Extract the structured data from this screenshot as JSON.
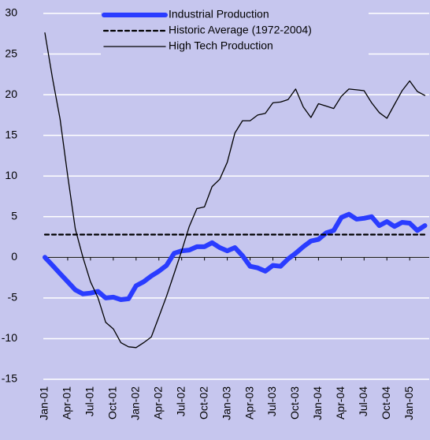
{
  "chart_data": {
    "type": "line",
    "categories": [
      "Jan-01",
      null,
      null,
      "Apr-01",
      null,
      null,
      "Jul-01",
      null,
      null,
      "Oct-01",
      null,
      null,
      "Jan-02",
      null,
      null,
      "Apr-02",
      null,
      null,
      "Jul-02",
      null,
      null,
      "Oct-02",
      null,
      null,
      "Jan-03",
      null,
      null,
      "Apr-03",
      null,
      null,
      "Jul-03",
      null,
      null,
      "Oct-03",
      null,
      null,
      "Jan-04",
      null,
      null,
      "Apr-04",
      null,
      null,
      "Jul-04",
      null,
      null,
      "Oct-04",
      null,
      null,
      "Jan-05",
      null,
      null
    ],
    "series": [
      {
        "name": "Industrial Production",
        "color": "#2a3cff",
        "line_width": 6,
        "line_style": "solid",
        "values": [
          0,
          -1,
          -2,
          -3,
          -4,
          -4.5,
          -4.4,
          -4.2,
          -5,
          -4.9,
          -5.2,
          -5.1,
          -3.5,
          -3,
          -2.3,
          -1.7,
          -1,
          0.5,
          0.8,
          0.9,
          1.3,
          1.3,
          1.8,
          1.2,
          0.8,
          1.2,
          0.2,
          -1.1,
          -1.3,
          -1.7,
          -1,
          -1.1,
          -0.2,
          0.5,
          1.3,
          2,
          2.2,
          3,
          3.3,
          4.9,
          5.3,
          4.7,
          4.8,
          5,
          3.9,
          4.4,
          3.8,
          4.3,
          4.2,
          3.3,
          3.9
        ]
      },
      {
        "name": "Historic Average (1972-2004)",
        "color": "#000000",
        "line_width": 2.2,
        "line_style": "dashed",
        "values": [
          2.8,
          2.8,
          2.8,
          2.8,
          2.8,
          2.8,
          2.8,
          2.8,
          2.8,
          2.8,
          2.8,
          2.8,
          2.8,
          2.8,
          2.8,
          2.8,
          2.8,
          2.8,
          2.8,
          2.8,
          2.8,
          2.8,
          2.8,
          2.8,
          2.8,
          2.8,
          2.8,
          2.8,
          2.8,
          2.8,
          2.8,
          2.8,
          2.8,
          2.8,
          2.8,
          2.8,
          2.8,
          2.8,
          2.8,
          2.8,
          2.8,
          2.8,
          2.8,
          2.8,
          2.8,
          2.8,
          2.8,
          2.8,
          2.8,
          2.8,
          2.8
        ]
      },
      {
        "name": "High Tech Production",
        "color": "#000000",
        "line_width": 1.3,
        "line_style": "solid",
        "values": [
          27.6,
          22,
          17,
          10,
          3.5,
          0,
          -3,
          -5,
          -8,
          -8.8,
          -10.5,
          -11,
          -11.1,
          -10.5,
          -9.8,
          -7.3,
          -4.8,
          -2,
          0.8,
          3.8,
          6,
          6.2,
          8.7,
          9.6,
          11.7,
          15.3,
          16.8,
          16.8,
          17.5,
          17.7,
          19,
          19.1,
          19.4,
          20.7,
          18.5,
          17.2,
          18.9,
          18.6,
          18.3,
          19.8,
          20.7,
          20.6,
          20.5,
          19,
          17.8,
          17.1,
          18.8,
          20.5,
          21.7,
          20.4,
          19.9
        ]
      }
    ],
    "ylim": [
      -15,
      30
    ],
    "yticks": [
      -15,
      -10,
      -5,
      0,
      5,
      10,
      15,
      20,
      25,
      30
    ],
    "grid": true,
    "grid_color": "#ffffff",
    "background": "#c6c6ee",
    "legend": "top"
  }
}
